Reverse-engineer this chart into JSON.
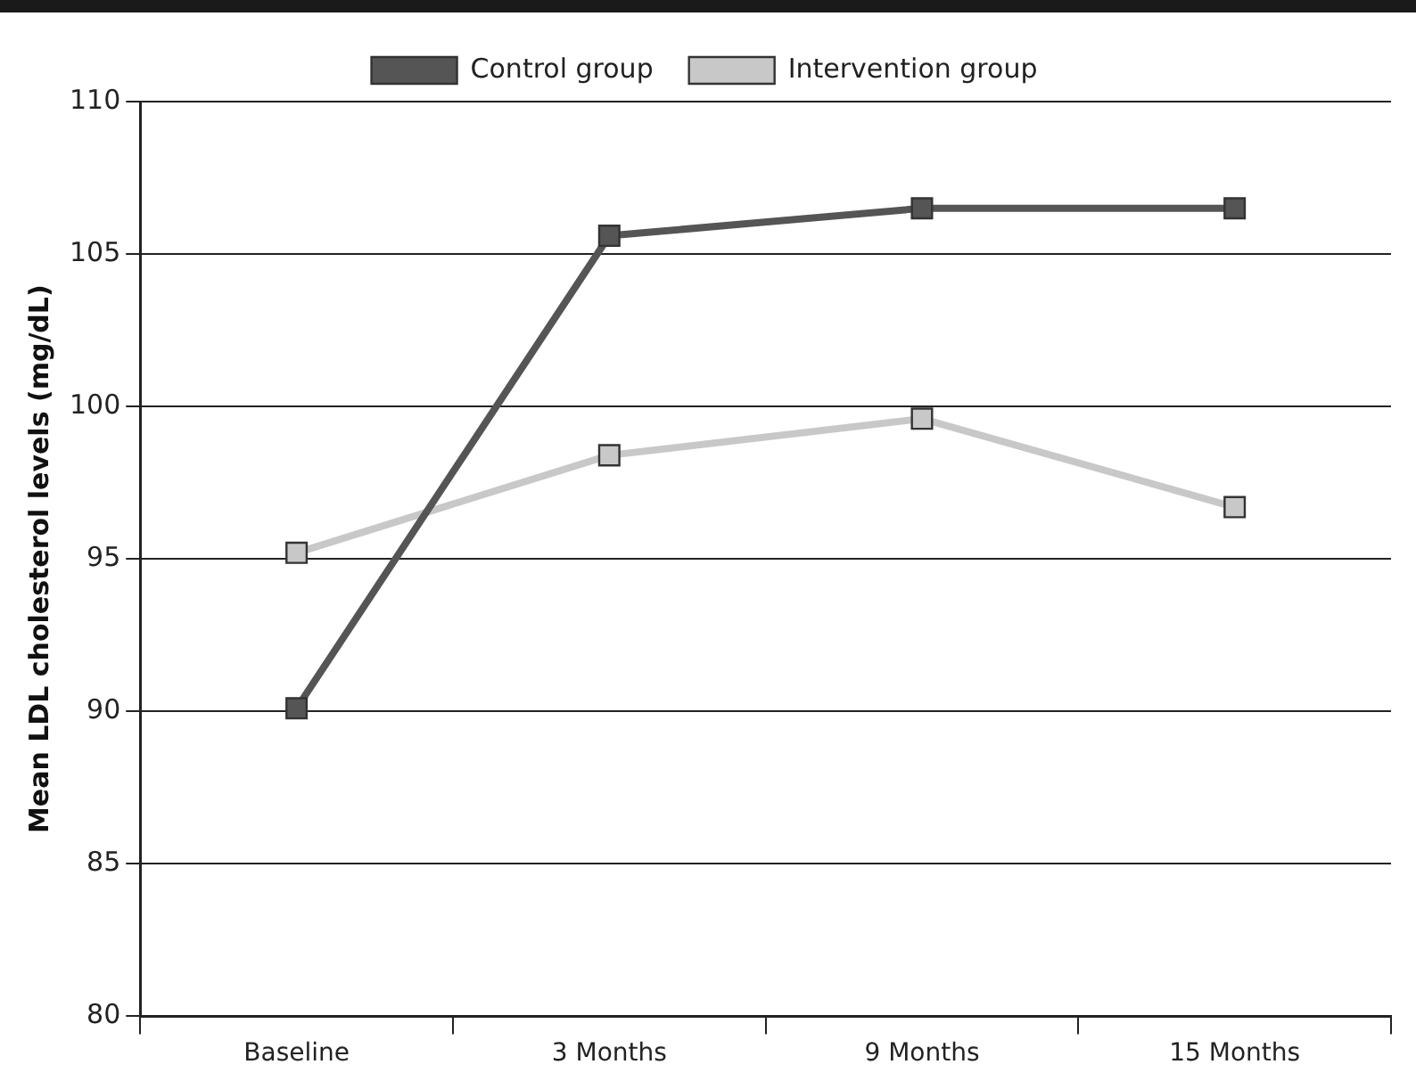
{
  "chart_data": {
    "type": "line",
    "ylabel": "Mean LDL cholesterol levels (mg/dL)",
    "categories": [
      "Baseline",
      "3 Months",
      "9 Months",
      "15 Months"
    ],
    "series": [
      {
        "name": "Control group",
        "color": "#555555",
        "values": [
          90.1,
          105.6,
          106.5,
          106.5
        ]
      },
      {
        "name": "Intervention group",
        "color": "#c8c8c8",
        "values": [
          95.2,
          98.4,
          99.6,
          96.7
        ]
      }
    ],
    "ylim": [
      80,
      110
    ],
    "yticks": [
      80,
      85,
      90,
      95,
      100,
      105,
      110
    ],
    "grid": "y",
    "legend": "top",
    "marker": "square",
    "line_style": "solid"
  }
}
